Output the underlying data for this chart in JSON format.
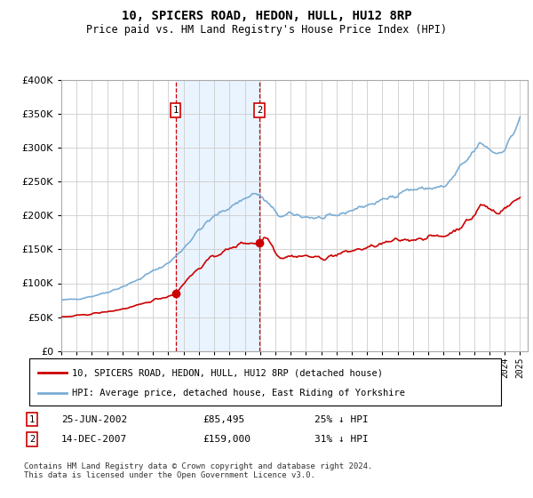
{
  "title": "10, SPICERS ROAD, HEDON, HULL, HU12 8RP",
  "subtitle": "Price paid vs. HM Land Registry's House Price Index (HPI)",
  "property_label": "10, SPICERS ROAD, HEDON, HULL, HU12 8RP (detached house)",
  "hpi_label": "HPI: Average price, detached house, East Riding of Yorkshire",
  "transaction1_date": "25-JUN-2002",
  "transaction1_price": 85495,
  "transaction1_pct": "25% ↓ HPI",
  "transaction1_year": 2002.47,
  "transaction2_date": "14-DEC-2007",
  "transaction2_price": 159000,
  "transaction2_pct": "31% ↓ HPI",
  "transaction2_year": 2007.95,
  "property_color": "#cc0000",
  "hpi_color": "#7aadd4",
  "marker_fill": "#cc0000",
  "background_color": "#ffffff",
  "grid_color": "#cccccc",
  "vline_color": "#cc0000",
  "shade_color": "#ddeeff",
  "ylim": [
    0,
    400000
  ],
  "xlim_start": 1995.0,
  "xlim_end": 2025.5,
  "footnote": "Contains HM Land Registry data © Crown copyright and database right 2024.\nThis data is licensed under the Open Government Licence v3.0."
}
